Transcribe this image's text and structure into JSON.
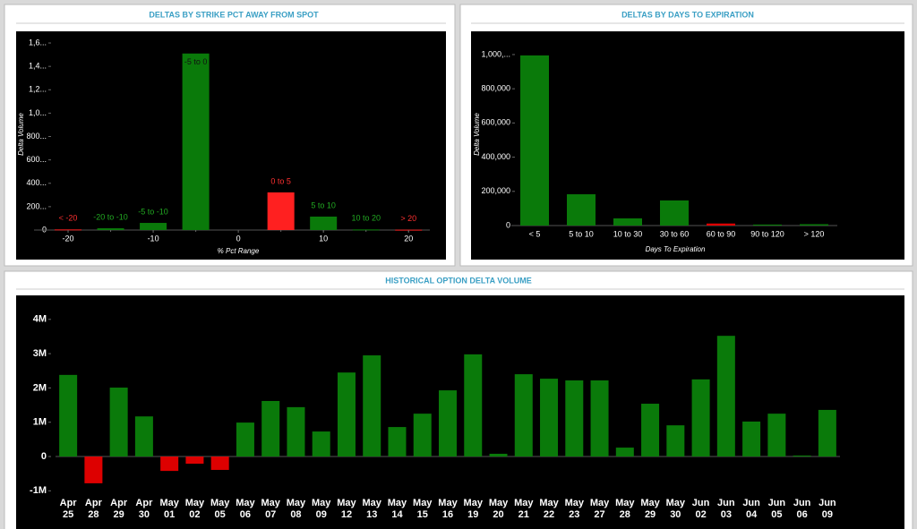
{
  "chart_data": [
    {
      "type": "bar",
      "title": "DELTAS BY STRIKE PCT AWAY FROM SPOT",
      "xlabel": "% Pct Range",
      "ylabel": "Delta Volume",
      "x": [
        -20,
        -15,
        -10,
        -5,
        5,
        10,
        15,
        20
      ],
      "labels": [
        "< -20",
        "-20 to -10",
        "-5 to -10",
        "-5 to 0",
        "0 to 5",
        "5 to 10",
        "10 to 20",
        "> 20"
      ],
      "values": [
        5000,
        15000,
        61000,
        1510000,
        322000,
        115000,
        5000,
        3000
      ],
      "colors": [
        "#ff2020",
        "#0a7a0a",
        "#0a7a0a",
        "#0a7a0a",
        "#ff2020",
        "#0a7a0a",
        "#0a7a0a",
        "#ff2020"
      ],
      "label_colors": [
        "#ff3030",
        "#22aa22",
        "#22aa22",
        "#111111",
        "#ff3030",
        "#22aa22",
        "#22aa22",
        "#ff3030"
      ],
      "xlim": [
        -24,
        22.5
      ],
      "xticks": [
        -20,
        -10,
        0,
        10,
        20
      ],
      "ylim": [
        0,
        1650000
      ],
      "yticks": [
        0,
        {
          "value": 200000,
          "label": "200..."
        },
        {
          "value": 400000,
          "label": "400..."
        },
        {
          "value": 600000,
          "label": "600..."
        },
        {
          "value": 800000,
          "label": "800..."
        },
        {
          "value": 1000000,
          "label": "1,0..."
        },
        {
          "value": 1200000,
          "label": "1,2..."
        },
        {
          "value": 1400000,
          "label": "1,4..."
        },
        {
          "value": 1600000,
          "label": "1,6..."
        }
      ]
    },
    {
      "type": "bar",
      "title": "DELTAS BY DAYS TO EXPIRATION",
      "xlabel": "Days To Expiration",
      "ylabel": "Delta Volume",
      "categories": [
        "< 5",
        "5 to 10",
        "10 to 30",
        "30 to 60",
        "60 to 90",
        "90 to 120",
        "> 120"
      ],
      "values": [
        995000,
        183000,
        42000,
        147000,
        12000,
        6000,
        8000
      ],
      "colors": [
        "#0a7a0a",
        "#0a7a0a",
        "#0a7a0a",
        "#0a7a0a",
        "#dd0000",
        "#0a7a0a",
        "#0a7a0a"
      ],
      "ylim": [
        0,
        1050000
      ],
      "yticks": [
        0,
        {
          "value": 200000,
          "label": "200,000"
        },
        {
          "value": 400000,
          "label": "400,000"
        },
        {
          "value": 600000,
          "label": "600,000"
        },
        {
          "value": 800000,
          "label": "800,000"
        },
        {
          "value": 1000000,
          "label": "1,000,..."
        }
      ]
    },
    {
      "type": "bar",
      "title": "HISTORICAL OPTION DELTA VOLUME",
      "categories": [
        [
          "Apr",
          "25"
        ],
        [
          "Apr",
          "28"
        ],
        [
          "Apr",
          "29"
        ],
        [
          "Apr",
          "30"
        ],
        [
          "May",
          "01"
        ],
        [
          "May",
          "02"
        ],
        [
          "May",
          "05"
        ],
        [
          "May",
          "06"
        ],
        [
          "May",
          "07"
        ],
        [
          "May",
          "08"
        ],
        [
          "May",
          "09"
        ],
        [
          "May",
          "12"
        ],
        [
          "May",
          "13"
        ],
        [
          "May",
          "14"
        ],
        [
          "May",
          "15"
        ],
        [
          "May",
          "16"
        ],
        [
          "May",
          "19"
        ],
        [
          "May",
          "20"
        ],
        [
          "May",
          "21"
        ],
        [
          "May",
          "22"
        ],
        [
          "May",
          "23"
        ],
        [
          "May",
          "27"
        ],
        [
          "May",
          "28"
        ],
        [
          "May",
          "29"
        ],
        [
          "May",
          "30"
        ],
        [
          "Jun",
          "02"
        ],
        [
          "Jun",
          "03"
        ],
        [
          "Jun",
          "04"
        ],
        [
          "Jun",
          "05"
        ],
        [
          "Jun",
          "06"
        ],
        [
          "Jun",
          "09"
        ]
      ],
      "values": [
        2380000,
        -780000,
        2010000,
        1170000,
        -420000,
        -210000,
        -390000,
        990000,
        1620000,
        1440000,
        730000,
        2450000,
        2950000,
        860000,
        1250000,
        1930000,
        2980000,
        80000,
        2400000,
        2270000,
        2220000,
        2220000,
        260000,
        1540000,
        910000,
        2250000,
        3520000,
        1020000,
        1250000,
        30000,
        1360000
      ],
      "color": "#0a7a0a",
      "negative_color": "#dd0000",
      "ylim": [
        -1200000,
        4300000
      ],
      "yticks": [
        {
          "value": -1000000,
          "label": "-1M"
        },
        0,
        {
          "value": 1000000,
          "label": "1M"
        },
        {
          "value": 2000000,
          "label": "2M"
        },
        {
          "value": 3000000,
          "label": "3M"
        },
        {
          "value": 4000000,
          "label": "4M"
        }
      ]
    }
  ]
}
